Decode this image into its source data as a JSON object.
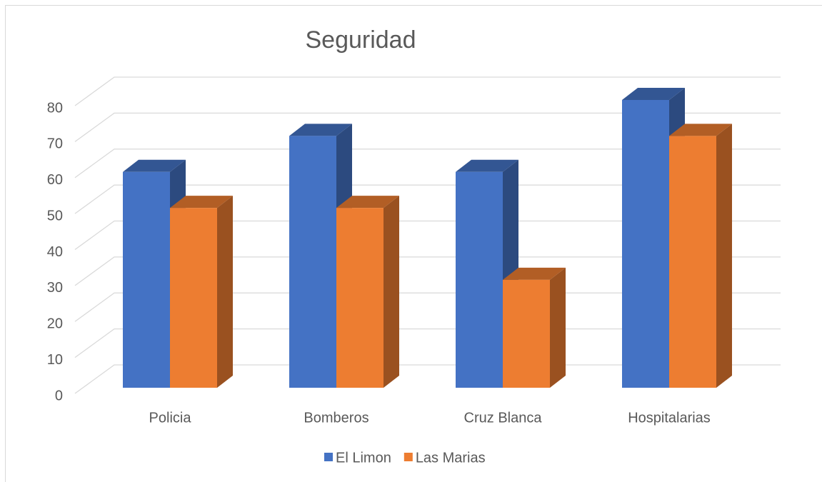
{
  "chart_data": {
    "type": "bar3d",
    "title": "Seguridad",
    "categories": [
      "Policia",
      "Bomberos",
      "Cruz Blanca",
      "Hospitalarias"
    ],
    "series": [
      {
        "name": "El Limon",
        "color": "#4472c4",
        "values": [
          60,
          70,
          60,
          80
        ]
      },
      {
        "name": "Las Marias",
        "color": "#ed7d31",
        "values": [
          50,
          50,
          30,
          70
        ]
      }
    ],
    "ylim": [
      0,
      80
    ],
    "yticks": [
      0,
      10,
      20,
      30,
      40,
      50,
      60,
      70,
      80
    ],
    "grid": true,
    "legend": "bottom"
  }
}
